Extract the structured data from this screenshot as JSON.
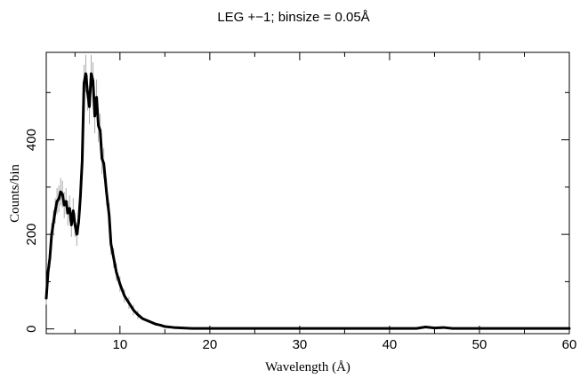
{
  "chart_data": {
    "type": "line",
    "title": "LEG +−1; binsize = 0.05Å",
    "xlabel": "Wavelength (Å)",
    "ylabel": "Counts/bin",
    "xlim": [
      1.8,
      60
    ],
    "ylim": [
      -10,
      585
    ],
    "x_ticks": [
      10,
      20,
      30,
      40,
      50,
      60
    ],
    "y_ticks": [
      0,
      200,
      400
    ],
    "x_tick_labels": [
      "10",
      "20",
      "30",
      "40",
      "50",
      "60"
    ],
    "y_tick_labels": [
      "0",
      "200",
      "400"
    ],
    "grid": false,
    "legend": "none",
    "colors": {
      "line": "#000000",
      "error": "#aaaaaa",
      "axes": "#000000"
    },
    "series": [
      {
        "x": [
          1.8,
          2.0,
          2.2,
          2.4,
          2.6,
          2.8,
          3.0,
          3.2,
          3.4,
          3.6,
          3.8,
          4.0,
          4.2,
          4.4,
          4.6,
          4.8,
          5.0,
          5.2,
          5.4,
          5.6,
          5.8,
          6.0,
          6.2,
          6.4,
          6.6,
          6.8,
          7.0,
          7.2,
          7.4,
          7.6,
          7.8,
          8.0,
          8.2,
          8.5,
          8.8,
          9.0,
          9.3,
          9.6,
          10.0,
          10.5,
          11.0,
          11.5,
          12.0,
          12.5,
          13.0,
          13.5,
          14.0,
          14.5,
          15.0,
          16.0,
          17.0,
          18.0,
          20.0,
          25.0,
          30.0,
          35.0,
          40.0,
          43.0,
          44.0,
          45.0,
          46.0,
          47.0,
          50.0,
          55.0,
          60.0
        ],
        "y": [
          65,
          120,
          150,
          200,
          225,
          250,
          270,
          275,
          290,
          285,
          262,
          270,
          245,
          255,
          220,
          250,
          220,
          200,
          225,
          280,
          355,
          520,
          540,
          500,
          470,
          540,
          525,
          450,
          490,
          430,
          420,
          360,
          350,
          290,
          240,
          180,
          150,
          120,
          95,
          70,
          55,
          40,
          30,
          22,
          18,
          14,
          10,
          8,
          5,
          3,
          2,
          1,
          1,
          1,
          1,
          1,
          1,
          1,
          4,
          2,
          3,
          1,
          1,
          1,
          1
        ]
      }
    ]
  }
}
